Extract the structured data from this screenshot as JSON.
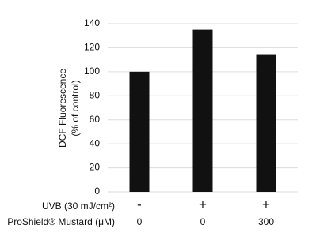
{
  "chart_data": {
    "type": "bar",
    "ylabel": [
      "DCF Fluorescence",
      "(% of control)"
    ],
    "categories": [
      null,
      null,
      null
    ],
    "values": [
      100,
      135,
      114
    ],
    "color": "#111111",
    "ylim": [
      0,
      140
    ],
    "yticks": [
      0,
      20,
      40,
      60,
      80,
      100,
      120,
      140
    ],
    "grid": true,
    "x_rows": [
      {
        "label": "UVB (30 mJ/cm²)",
        "values": [
          "-",
          "+",
          "+"
        ]
      },
      {
        "label": "ProShield® Mustard (μM)",
        "values": [
          "0",
          "0",
          "300"
        ]
      }
    ]
  }
}
